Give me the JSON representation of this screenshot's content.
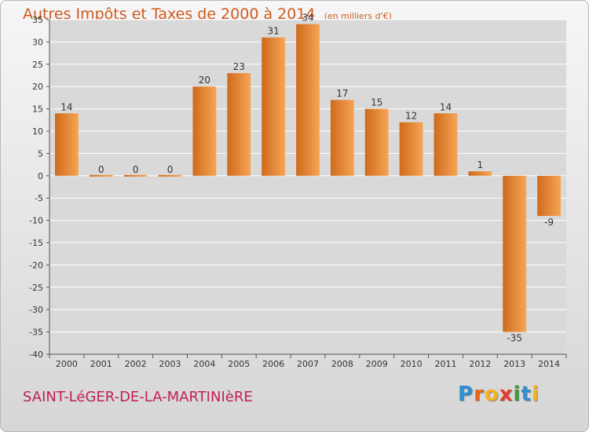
{
  "chart_data": {
    "type": "bar",
    "title": "Autres Impôts et Taxes de 2000 à 2014",
    "subtitle": "(en milliers d'€)",
    "categories": [
      "2000",
      "2001",
      "2002",
      "2003",
      "2004",
      "2005",
      "2006",
      "2007",
      "2008",
      "2009",
      "2010",
      "2011",
      "2012",
      "2013",
      "2014"
    ],
    "values": [
      14,
      0,
      0,
      0,
      20,
      23,
      31,
      34,
      17,
      15,
      12,
      14,
      1,
      -35,
      -9
    ],
    "data_labels": [
      "14",
      "0",
      "0",
      "0",
      "20",
      "23",
      "31",
      "34",
      "17",
      "15",
      "12",
      "14",
      "1",
      "-35",
      "-9"
    ],
    "ylim": [
      -40,
      35
    ],
    "yticks": [
      35,
      30,
      25,
      20,
      15,
      10,
      5,
      0,
      -5,
      -10,
      -15,
      -20,
      -25,
      -30,
      -35,
      -40
    ],
    "ytick_labels": [
      "35",
      "30",
      "25",
      "20",
      "15",
      "10",
      "5",
      "0",
      "-5",
      "-10",
      "-15",
      "-20",
      "-25",
      "-30",
      "-35",
      "-40"
    ],
    "grid": true,
    "xlabel": "",
    "ylabel": "",
    "colors": {
      "bar_light": "#f6a555",
      "bar_dark": "#cf6a1c",
      "title": "#cf5a1e",
      "grid": "#ffffff"
    }
  },
  "footer": {
    "place_name": "SAINT-LéGER-DE-LA-MARTINIèRE",
    "logo_letters": [
      "P",
      "r",
      "o",
      "x",
      "i",
      "t",
      "i"
    ],
    "logo_colors": [
      "#2f8fd0",
      "#e8661c",
      "#f2b320",
      "#e43b2f",
      "#3d9b35",
      "#2f8fd0",
      "#f2b320"
    ]
  }
}
